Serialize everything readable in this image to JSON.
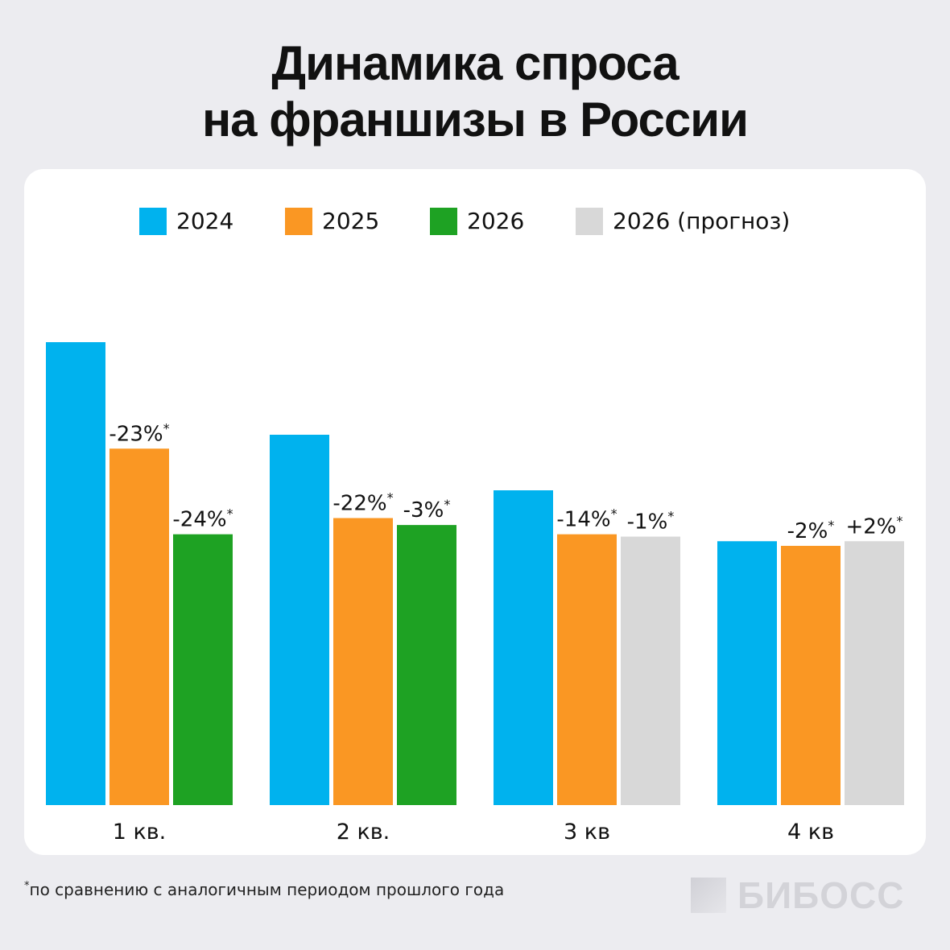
{
  "title_line1": "Динамика спроса",
  "title_line2": "на франшизы в России",
  "legend": [
    {
      "label": "2024",
      "color": "#00b2ee"
    },
    {
      "label": "2025",
      "color": "#fa9723"
    },
    {
      "label": "2026",
      "color": "#1ea223"
    },
    {
      "label": "2026 (прогноз)",
      "color": "#d8d8d8"
    }
  ],
  "footnote": {
    "mark": "*",
    "text": "по сравнению с аналогичным периодом прошлого года"
  },
  "brand": "БИБОСС",
  "chart_data": {
    "type": "bar",
    "title": "Динамика спроса на франшизы в России",
    "categories": [
      "1 кв.",
      "2 кв.",
      "3 кв",
      "4 кв"
    ],
    "series": [
      {
        "name": "2024",
        "color": "#00b2ee",
        "values": [
          100,
          80,
          68,
          57
        ],
        "labels": [
          "",
          "",
          "",
          ""
        ]
      },
      {
        "name": "2025",
        "color": "#fa9723",
        "values": [
          77,
          62,
          58.5,
          56
        ],
        "labels": [
          "-23%*",
          "-22%*",
          "-14%*",
          "-2%*"
        ]
      },
      {
        "name": "2026 / 2026 (прогноз)",
        "values": [
          58.5,
          60.5,
          58,
          57
        ],
        "colors": [
          "#1ea223",
          "#1ea223",
          "#d8d8d8",
          "#d8d8d8"
        ],
        "labels": [
          "-24%*",
          "-3%*",
          "-1%*",
          "+2%*"
        ]
      }
    ],
    "ylim": [
      0,
      100
    ],
    "legend_position": "top-center",
    "grid": false
  }
}
